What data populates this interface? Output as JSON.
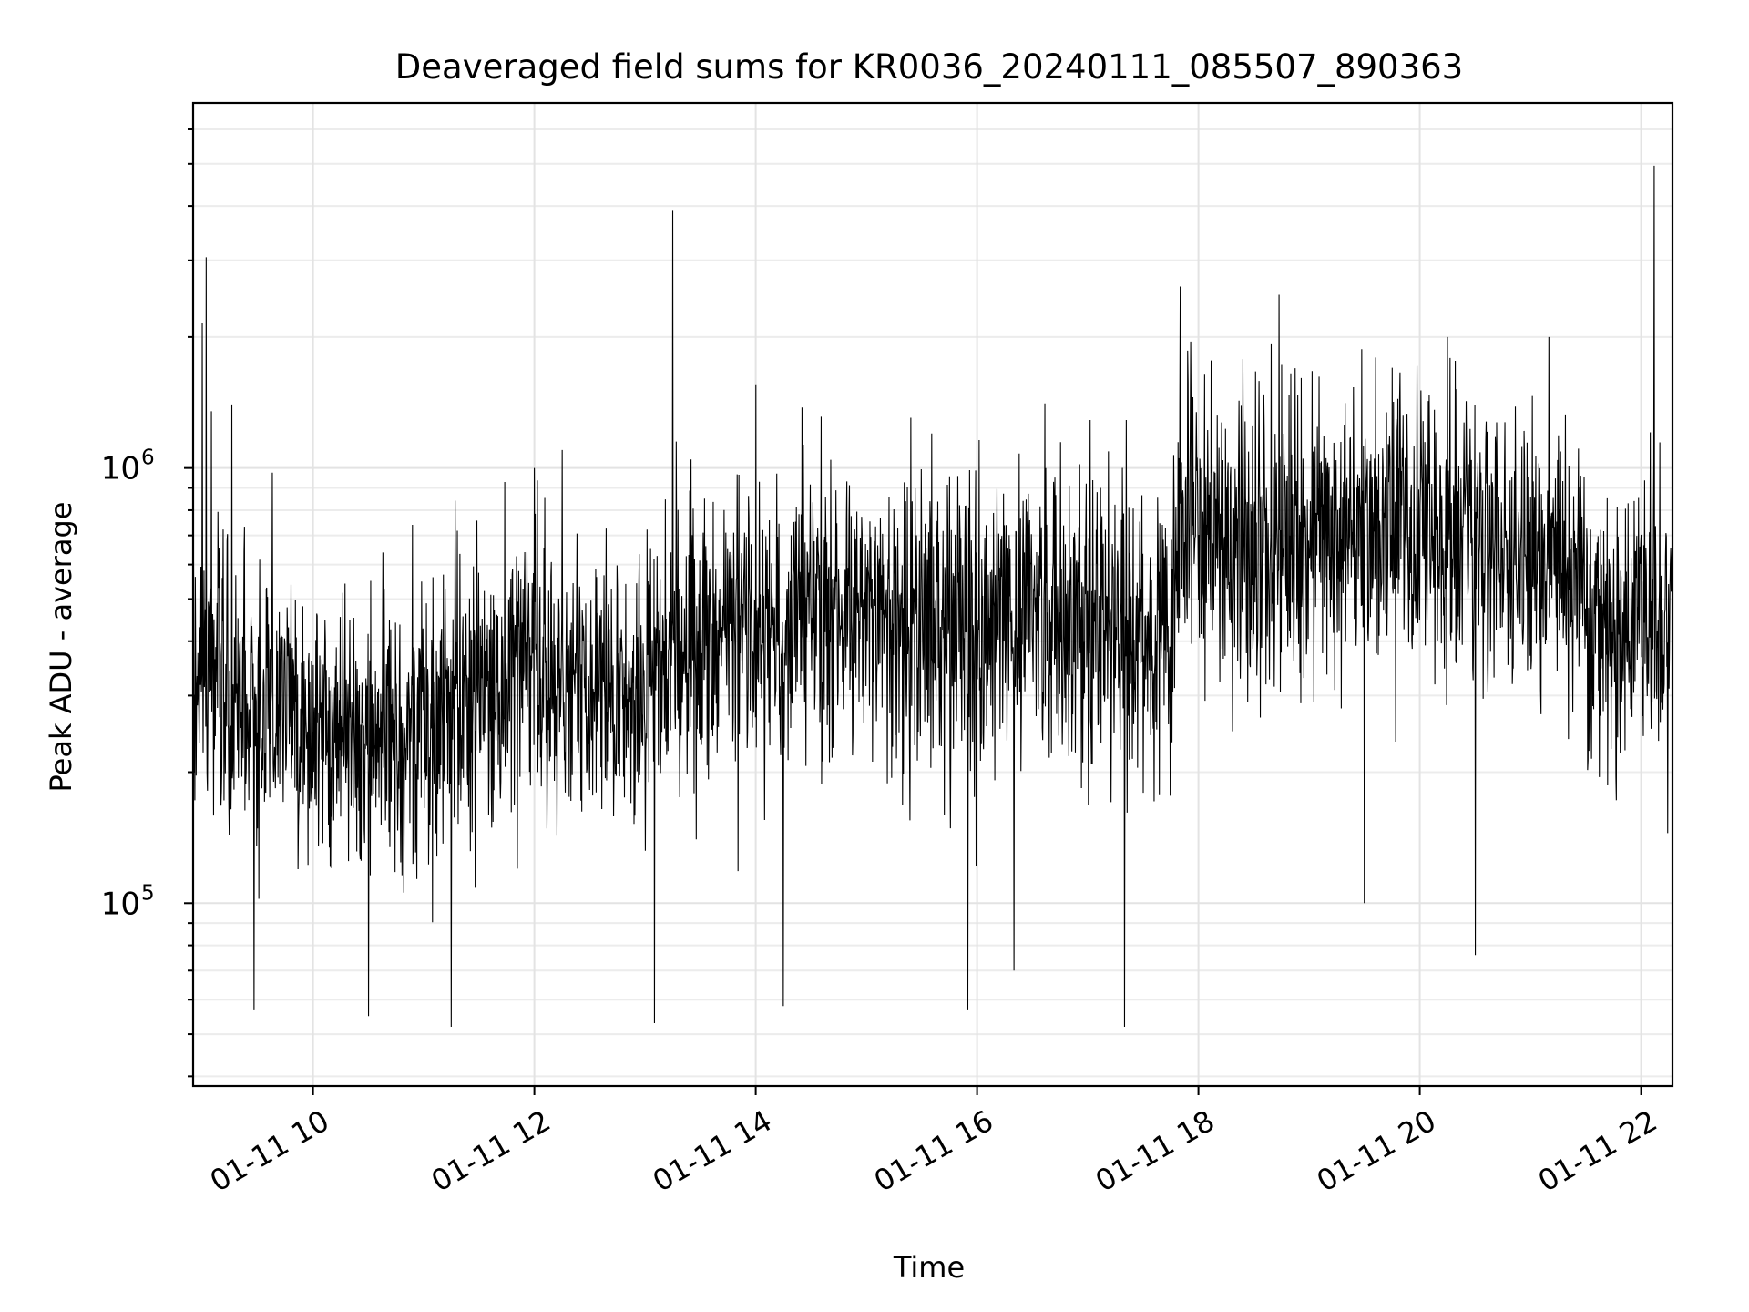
{
  "chart_data": {
    "type": "line",
    "title": "Deaveraged field sums for KR0036_20240111_085507_890363",
    "xlabel": "Time",
    "ylabel": "Peak ADU - average",
    "yscale": "log",
    "grid": true,
    "legend": "none",
    "x_range": [
      "2024-01-11 08:55",
      "2024-01-11 22:17"
    ],
    "ylim": [
      38000,
      6900000
    ],
    "x_ticks": [
      {
        "value": "2024-01-11 10:00",
        "label": "01-11 10"
      },
      {
        "value": "2024-01-11 12:00",
        "label": "01-11 12"
      },
      {
        "value": "2024-01-11 14:00",
        "label": "01-11 14"
      },
      {
        "value": "2024-01-11 16:00",
        "label": "01-11 16"
      },
      {
        "value": "2024-01-11 18:00",
        "label": "01-11 18"
      },
      {
        "value": "2024-01-11 20:00",
        "label": "01-11 20"
      },
      {
        "value": "2024-01-11 22:00",
        "label": "01-11 22"
      }
    ],
    "y_ticks": [
      {
        "value": 100000,
        "base": "10",
        "exp": "5"
      },
      {
        "value": 1000000,
        "base": "10",
        "exp": "6"
      }
    ],
    "series": [
      {
        "color": "#000000",
        "baseline": [
          {
            "x": "2024-01-11 08:55",
            "y": 320000
          },
          {
            "x": "2024-01-11 09:30",
            "y": 290000
          },
          {
            "x": "2024-01-11 10:00",
            "y": 250000
          },
          {
            "x": "2024-01-11 10:30",
            "y": 235000
          },
          {
            "x": "2024-01-11 11:00",
            "y": 245000
          },
          {
            "x": "2024-01-11 11:30",
            "y": 290000
          },
          {
            "x": "2024-01-11 12:00",
            "y": 340000
          },
          {
            "x": "2024-01-11 12:20",
            "y": 300000
          },
          {
            "x": "2024-01-11 13:00",
            "y": 320000
          },
          {
            "x": "2024-01-11 13:30",
            "y": 410000
          },
          {
            "x": "2024-01-11 14:00",
            "y": 430000
          },
          {
            "x": "2024-01-11 15:00",
            "y": 480000
          },
          {
            "x": "2024-01-11 16:00",
            "y": 440000
          },
          {
            "x": "2024-01-11 17:00",
            "y": 430000
          },
          {
            "x": "2024-01-11 17:45",
            "y": 420000
          },
          {
            "x": "2024-01-11 17:50",
            "y": 700000
          },
          {
            "x": "2024-01-11 18:30",
            "y": 650000
          },
          {
            "x": "2024-01-11 19:30",
            "y": 680000
          },
          {
            "x": "2024-01-11 20:00",
            "y": 720000
          },
          {
            "x": "2024-01-11 20:30",
            "y": 700000
          },
          {
            "x": "2024-01-11 21:00",
            "y": 680000
          },
          {
            "x": "2024-01-11 21:30",
            "y": 560000
          },
          {
            "x": "2024-01-11 21:35",
            "y": 420000
          },
          {
            "x": "2024-01-11 22:17",
            "y": 420000
          }
        ],
        "spikes": [
          {
            "x": "2024-01-11 09:02",
            "y": 3050000
          },
          {
            "x": "2024-01-11 09:00",
            "y": 2150000
          },
          {
            "x": "2024-01-11 09:16",
            "y": 1400000
          },
          {
            "x": "2024-01-11 09:05",
            "y": 1350000
          },
          {
            "x": "2024-01-11 13:15",
            "y": 3900000
          },
          {
            "x": "2024-01-11 13:17",
            "y": 1150000
          },
          {
            "x": "2024-01-11 14:00",
            "y": 1550000
          },
          {
            "x": "2024-01-11 12:15",
            "y": 1100000
          },
          {
            "x": "2024-01-11 12:00",
            "y": 1000000
          },
          {
            "x": "2024-01-11 20:15",
            "y": 2000000
          },
          {
            "x": "2024-01-11 21:10",
            "y": 2000000
          },
          {
            "x": "2024-01-11 22:07",
            "y": 4950000
          },
          {
            "x": "2024-01-11 17:50",
            "y": 1400000
          },
          {
            "x": "2024-01-11 18:50",
            "y": 1650000
          },
          {
            "x": "2024-01-11 19:45",
            "y": 1700000
          },
          {
            "x": "2024-01-11 10:30",
            "y": 55000
          },
          {
            "x": "2024-01-11 09:28",
            "y": 57000
          },
          {
            "x": "2024-01-11 11:15",
            "y": 52000
          },
          {
            "x": "2024-01-11 13:05",
            "y": 53000
          },
          {
            "x": "2024-01-11 15:55",
            "y": 57000
          },
          {
            "x": "2024-01-11 17:20",
            "y": 52000
          },
          {
            "x": "2024-01-11 14:15",
            "y": 58000
          },
          {
            "x": "2024-01-11 20:30",
            "y": 76000
          },
          {
            "x": "2024-01-11 16:20",
            "y": 70000
          },
          {
            "x": "2024-01-11 19:30",
            "y": 100000
          }
        ]
      }
    ]
  }
}
